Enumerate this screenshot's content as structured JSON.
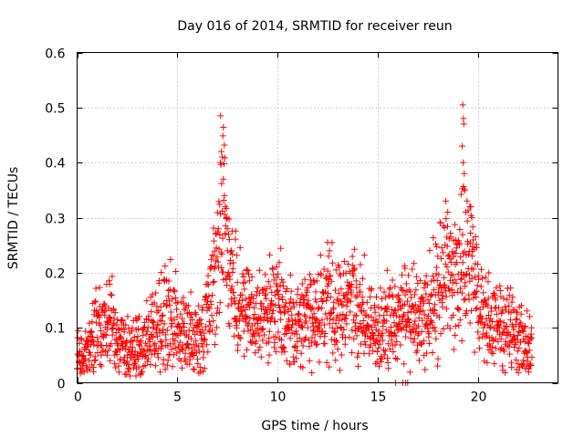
{
  "chart_data": {
    "type": "scatter",
    "title": "Day 016 of 2014, SRMTID for receiver reun",
    "xlabel": "GPS time / hours",
    "ylabel": "SRMTID / TECUs",
    "xlim": [
      0,
      24
    ],
    "ylim": [
      0,
      0.6
    ],
    "xticks": [
      "0",
      "5",
      "10",
      "15",
      "20"
    ],
    "xtick_values": [
      0,
      5,
      10,
      15,
      20
    ],
    "yticks": [
      "0",
      "0.1",
      "0.2",
      "0.3",
      "0.4",
      "0.5",
      "0.6"
    ],
    "ytick_values": [
      0,
      0.1,
      0.2,
      0.3,
      0.4,
      0.5,
      0.6
    ],
    "grid": true,
    "marker": "+",
    "series_color": "#ff0000",
    "series": [
      {
        "name": "SRMTID",
        "x_range": [
          0,
          22.7
        ],
        "sample_step_hours": 0.0125,
        "trend": [
          [
            0,
            0.04
          ],
          [
            0.5,
            0.06
          ],
          [
            1.0,
            0.09
          ],
          [
            1.5,
            0.11
          ],
          [
            2.0,
            0.08
          ],
          [
            2.5,
            0.06
          ],
          [
            3.0,
            0.06
          ],
          [
            3.5,
            0.08
          ],
          [
            4.0,
            0.1
          ],
          [
            4.5,
            0.13
          ],
          [
            5.0,
            0.11
          ],
          [
            5.5,
            0.09
          ],
          [
            6.0,
            0.07
          ],
          [
            6.5,
            0.12
          ],
          [
            7.0,
            0.22
          ],
          [
            7.3,
            0.33
          ],
          [
            7.6,
            0.22
          ],
          [
            8.0,
            0.15
          ],
          [
            8.5,
            0.12
          ],
          [
            9.0,
            0.11
          ],
          [
            9.5,
            0.12
          ],
          [
            10.0,
            0.14
          ],
          [
            10.5,
            0.11
          ],
          [
            11.0,
            0.11
          ],
          [
            11.5,
            0.12
          ],
          [
            12.0,
            0.13
          ],
          [
            12.5,
            0.15
          ],
          [
            13.0,
            0.13
          ],
          [
            13.5,
            0.14
          ],
          [
            14.0,
            0.13
          ],
          [
            14.5,
            0.11
          ],
          [
            15.0,
            0.1
          ],
          [
            15.5,
            0.1
          ],
          [
            16.0,
            0.12
          ],
          [
            16.5,
            0.13
          ],
          [
            17.0,
            0.11
          ],
          [
            17.5,
            0.12
          ],
          [
            18.0,
            0.17
          ],
          [
            18.5,
            0.2
          ],
          [
            19.0,
            0.19
          ],
          [
            19.3,
            0.24
          ],
          [
            19.7,
            0.2
          ],
          [
            20.0,
            0.13
          ],
          [
            20.5,
            0.12
          ],
          [
            21.0,
            0.11
          ],
          [
            21.5,
            0.1
          ],
          [
            22.0,
            0.09
          ],
          [
            22.7,
            0.06
          ]
        ],
        "peak_points": [
          [
            7.15,
            0.4
          ],
          [
            7.2,
            0.42
          ],
          [
            7.25,
            0.41
          ],
          [
            7.3,
            0.37
          ],
          [
            7.35,
            0.34
          ],
          [
            7.4,
            0.32
          ],
          [
            7.45,
            0.3
          ],
          [
            7.5,
            0.28
          ],
          [
            7.6,
            0.26
          ],
          [
            7.7,
            0.24
          ],
          [
            19.25,
            0.505
          ],
          [
            19.28,
            0.48
          ],
          [
            19.3,
            0.47
          ],
          [
            19.22,
            0.43
          ],
          [
            19.27,
            0.4
          ],
          [
            19.32,
            0.38
          ],
          [
            19.35,
            0.35
          ],
          [
            19.4,
            0.31
          ],
          [
            19.6,
            0.32
          ],
          [
            19.7,
            0.3
          ],
          [
            18.4,
            0.33
          ],
          [
            18.5,
            0.31
          ],
          [
            12.5,
            0.255
          ],
          [
            12.6,
            0.24
          ],
          [
            12.55,
            0.23
          ]
        ],
        "zero_points": [
          [
            15.9,
            0.0
          ],
          [
            16.25,
            0.0
          ],
          [
            16.4,
            0.0
          ],
          [
            16.5,
            0.0
          ]
        ]
      }
    ]
  }
}
